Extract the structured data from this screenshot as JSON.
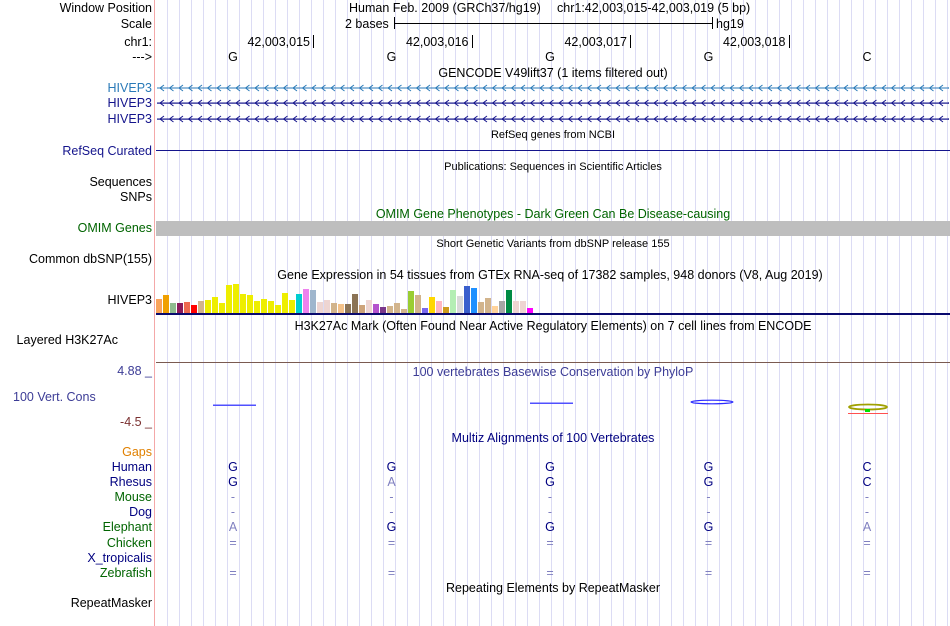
{
  "header": {
    "window_label": "Window Position",
    "assembly": "Human Feb. 2009 (GRCh37/hg19)",
    "position": "chr1:42,003,015-42,003,019 (5 bp)",
    "scale_label": "Scale",
    "scale_text": "2 bases",
    "scale_db": "hg19",
    "chrom_label": "chr1:",
    "strand_label": "--->",
    "ticks": [
      "42,003,015",
      "42,003,016",
      "42,003,017",
      "42,003,018"
    ],
    "bases": [
      "G",
      "G",
      "G",
      "G",
      "C"
    ]
  },
  "gencode": {
    "title": "GENCODE V49lift37 (1 items filtered out)",
    "genes": [
      "HIVEP3",
      "HIVEP3",
      "HIVEP3"
    ]
  },
  "refseq": {
    "title": "RefSeq genes from NCBI",
    "label": "RefSeq Curated"
  },
  "pubs": {
    "title": "Publications: Sequences in Scientific Articles",
    "labels": [
      "Sequences",
      "SNPs"
    ]
  },
  "omim": {
    "title": "OMIM Gene Phenotypes - Dark Green Can Be Disease-causing",
    "label": "OMIM Genes"
  },
  "dbsnp": {
    "title": "Short Genetic Variants from dbSNP release 155",
    "label": "Common dbSNP(155)"
  },
  "gtex": {
    "title": "Gene Expression in 54 tissues from GTEx RNA-seq of 17382 samples, 948 donors (V8, Aug 2019)",
    "label": "HIVEP3",
    "values": [
      42,
      54,
      30,
      30,
      33,
      24,
      36,
      39,
      48,
      30,
      84,
      87,
      57,
      54,
      36,
      42,
      36,
      24,
      60,
      39,
      57,
      72,
      69,
      33,
      39,
      30,
      27,
      27,
      57,
      24,
      39,
      27,
      18,
      21,
      30,
      12,
      66,
      54,
      15,
      48,
      36,
      18,
      69,
      51,
      81,
      75,
      33,
      45,
      21,
      36,
      69,
      36,
      36,
      15
    ],
    "colors": [
      "#f9a35a",
      "#f0a000",
      "#8fbc8f",
      "#8b1a5a",
      "#ee6a50",
      "#ff0000",
      "#d2b48c",
      "#eeee00",
      "#eeee00",
      "#eeee00",
      "#eeee00",
      "#eeee00",
      "#eeee00",
      "#eeee00",
      "#eeee00",
      "#eeee00",
      "#eeee00",
      "#eeee00",
      "#eeee00",
      "#eeee00",
      "#00ced1",
      "#ee82ee",
      "#9fb6cd",
      "#eed5d2",
      "#eed5d2",
      "#d2b48c",
      "#f4c28a",
      "#8b7355",
      "#8b7355",
      "#cda37a",
      "#eed5d2",
      "#b452cd",
      "#7a378b",
      "#d2b48c",
      "#d2b48c",
      "#d2b48c",
      "#9acd32",
      "#d2b48c",
      "#7b68ee",
      "#ffd700",
      "#ffb6c1",
      "#cd9b1d",
      "#b4eeb4",
      "#d9d9d9",
      "#3a5fcd",
      "#1e90ff",
      "#d2b48c",
      "#d2b48c",
      "#ffd39b",
      "#a6a6a6",
      "#008b45",
      "#eed5d2",
      "#eed5d2",
      "#ff00ff"
    ]
  },
  "h3k27ac": {
    "title": "H3K27Ac Mark (Often Found Near Active Regulatory Elements) on 7 cell lines from ENCODE",
    "label": "Layered H3K27Ac"
  },
  "phylop": {
    "title": "100 vertebrates Basewise Conservation by PhyloP",
    "label": "100 Vert. Cons",
    "max": "4.88 _",
    "min": "-4.5 _"
  },
  "multiz": {
    "title": "Multiz Alignments of 100 Vertebrates",
    "gaps_label": "Gaps",
    "species": [
      {
        "name": "Human",
        "color": "#000080",
        "bases": [
          "G",
          "G",
          "G",
          "G",
          "C"
        ]
      },
      {
        "name": "Rhesus",
        "color": "#000080",
        "bases": [
          "G",
          "A",
          "G",
          "G",
          "C"
        ]
      },
      {
        "name": "Mouse",
        "color": "#006400",
        "bases": [
          "-",
          "-",
          "-",
          "-",
          "-"
        ]
      },
      {
        "name": "Dog",
        "color": "#000080",
        "bases": [
          "-",
          "-",
          "-",
          "-",
          "-"
        ]
      },
      {
        "name": "Elephant",
        "color": "#006400",
        "bases": [
          "A",
          "G",
          "G",
          "G",
          "A"
        ]
      },
      {
        "name": "Chicken",
        "color": "#006400",
        "bases": [
          "=",
          "=",
          "=",
          "=",
          "="
        ]
      },
      {
        "name": "X_tropicalis",
        "color": "#000080",
        "bases": [
          "",
          "",
          "",
          "",
          ""
        ]
      },
      {
        "name": "Zebrafish",
        "color": "#006400",
        "bases": [
          "=",
          "=",
          "=",
          "=",
          "="
        ]
      }
    ]
  },
  "repeatmasker": {
    "title": "Repeating Elements by RepeatMasker",
    "label": "RepeatMasker"
  }
}
